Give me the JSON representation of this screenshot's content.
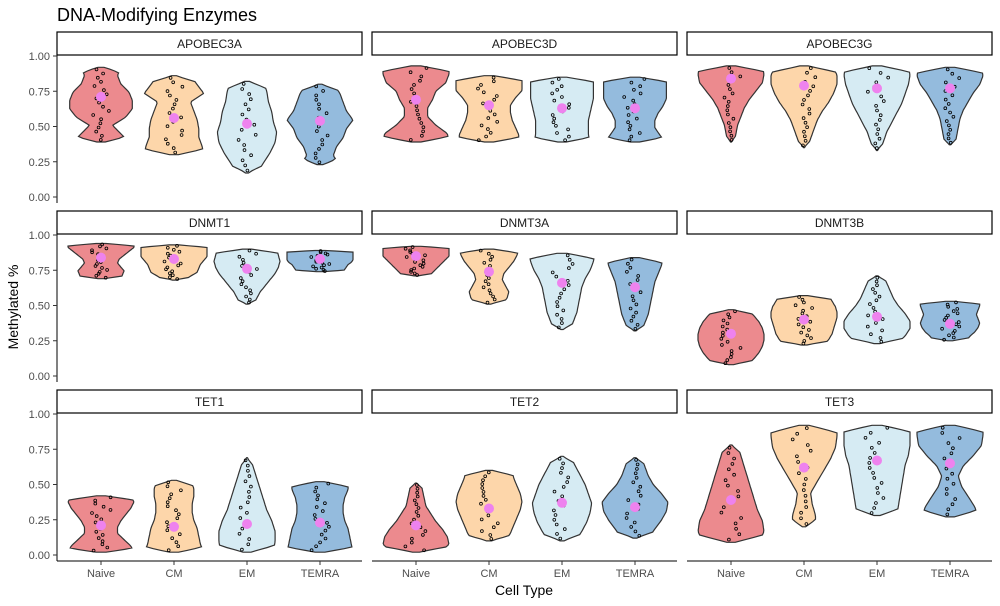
{
  "chart_data": {
    "type": "violin",
    "title": "DNA-Modifying Enzymes",
    "xlabel": "Cell Type",
    "ylabel": "Methylated %",
    "categories": [
      "Naive",
      "CM",
      "EM",
      "TEMRA"
    ],
    "colors": [
      "#EC8A8E",
      "#FDD6AA",
      "#D6EBF3",
      "#94BBDD"
    ],
    "mean_color": "#EE82EE",
    "ylim": [
      0,
      1
    ],
    "y_ticks": [
      "0.00",
      "0.25",
      "0.50",
      "0.75",
      "1.00"
    ],
    "grid": false,
    "legend": "none",
    "panels": [
      {
        "name": "APOBEC3A",
        "series": [
          {
            "min": 0.39,
            "max": 0.92,
            "mean": 0.71,
            "shape": [
              0.85,
              0.6,
              0.35,
              0.75,
              0.95,
              0.95,
              0.85,
              0.6,
              0.5,
              0.6
            ]
          },
          {
            "min": 0.3,
            "max": 0.86,
            "mean": 0.56,
            "shape": [
              0.9,
              0.85,
              0.75,
              0.75,
              0.7,
              0.6,
              0.5,
              0.9,
              0.7,
              0.5
            ]
          },
          {
            "min": 0.17,
            "max": 0.82,
            "mean": 0.52,
            "shape": [
              0.3,
              0.5,
              0.7,
              0.85,
              0.9,
              0.8,
              0.75,
              0.65,
              0.6,
              0.5
            ]
          },
          {
            "min": 0.23,
            "max": 0.8,
            "mean": 0.54,
            "shape": [
              0.6,
              0.4,
              0.5,
              0.7,
              0.8,
              1.0,
              0.8,
              0.7,
              0.6,
              0.4
            ]
          }
        ]
      },
      {
        "name": "APOBEC3D",
        "series": [
          {
            "min": 0.39,
            "max": 0.93,
            "mean": 0.69,
            "shape": [
              1.0,
              0.95,
              0.6,
              0.35,
              0.35,
              0.5,
              0.6,
              0.9,
              1.0,
              1.0
            ]
          },
          {
            "min": 0.39,
            "max": 0.86,
            "mean": 0.65,
            "shape": [
              0.9,
              0.9,
              0.8,
              0.7,
              0.65,
              0.65,
              0.8,
              1.0,
              1.0,
              1.0
            ]
          },
          {
            "min": 0.39,
            "max": 0.85,
            "mean": 0.63,
            "shape": [
              0.85,
              0.8,
              0.8,
              0.8,
              0.85,
              0.9,
              0.95,
              0.95,
              0.95,
              0.95
            ]
          },
          {
            "min": 0.39,
            "max": 0.85,
            "mean": 0.63,
            "shape": [
              0.9,
              0.75,
              0.6,
              0.6,
              0.7,
              0.85,
              0.95,
              0.95,
              0.95,
              0.95
            ]
          }
        ]
      },
      {
        "name": "APOBEC3G",
        "series": [
          {
            "min": 0.39,
            "max": 0.93,
            "mean": 0.84,
            "shape": [
              0.1,
              0.15,
              0.2,
              0.3,
              0.4,
              0.55,
              0.75,
              0.95,
              1.0,
              0.95
            ]
          },
          {
            "min": 0.35,
            "max": 0.93,
            "mean": 0.79,
            "shape": [
              0.1,
              0.2,
              0.3,
              0.4,
              0.55,
              0.75,
              0.9,
              1.0,
              1.0,
              0.85
            ]
          },
          {
            "min": 0.33,
            "max": 0.93,
            "mean": 0.77,
            "shape": [
              0.1,
              0.2,
              0.3,
              0.45,
              0.6,
              0.75,
              0.85,
              0.95,
              1.0,
              0.95
            ]
          },
          {
            "min": 0.37,
            "max": 0.92,
            "mean": 0.77,
            "shape": [
              0.15,
              0.2,
              0.25,
              0.3,
              0.4,
              0.55,
              0.7,
              0.9,
              1.0,
              0.95
            ]
          }
        ]
      },
      {
        "name": "DNMT1",
        "series": [
          {
            "min": 0.69,
            "max": 0.94,
            "mean": 0.84,
            "shape": [
              0.6,
              0.65,
              0.7,
              0.6,
              0.5,
              0.55,
              0.7,
              0.85,
              1.0,
              1.0
            ]
          },
          {
            "min": 0.68,
            "max": 0.93,
            "mean": 0.83,
            "shape": [
              0.3,
              0.5,
              0.7,
              0.75,
              0.8,
              0.9,
              1.0,
              1.0,
              1.0,
              1.0
            ]
          },
          {
            "min": 0.51,
            "max": 0.9,
            "mean": 0.76,
            "shape": [
              0.2,
              0.3,
              0.4,
              0.55,
              0.7,
              0.85,
              0.95,
              1.0,
              0.95,
              0.9
            ]
          },
          {
            "min": 0.74,
            "max": 0.89,
            "mean": 0.83,
            "shape": [
              0.7,
              0.75,
              0.8,
              0.85,
              0.95,
              1.0,
              1.0,
              1.0,
              1.0,
              1.0
            ]
          }
        ]
      },
      {
        "name": "DNMT3A",
        "series": [
          {
            "min": 0.71,
            "max": 0.92,
            "mean": 0.85,
            "shape": [
              0.4,
              0.5,
              0.6,
              0.7,
              0.8,
              0.9,
              1.0,
              1.0,
              1.0,
              1.0
            ]
          },
          {
            "min": 0.51,
            "max": 0.9,
            "mean": 0.74,
            "shape": [
              0.4,
              0.55,
              0.6,
              0.5,
              0.4,
              0.45,
              0.6,
              0.75,
              0.85,
              0.9
            ]
          },
          {
            "min": 0.33,
            "max": 0.87,
            "mean": 0.66,
            "shape": [
              0.25,
              0.35,
              0.45,
              0.5,
              0.55,
              0.6,
              0.7,
              0.85,
              0.95,
              1.0
            ]
          },
          {
            "min": 0.32,
            "max": 0.84,
            "mean": 0.63,
            "shape": [
              0.2,
              0.3,
              0.4,
              0.45,
              0.5,
              0.55,
              0.6,
              0.7,
              0.8,
              0.85
            ]
          }
        ]
      },
      {
        "name": "DNMT3B",
        "series": [
          {
            "min": 0.08,
            "max": 0.47,
            "mean": 0.3,
            "shape": [
              0.5,
              0.7,
              0.85,
              0.95,
              1.0,
              1.0,
              0.95,
              0.85,
              0.7,
              0.5
            ]
          },
          {
            "min": 0.22,
            "max": 0.57,
            "mean": 0.4,
            "shape": [
              0.6,
              0.75,
              0.85,
              0.9,
              0.95,
              1.0,
              1.0,
              0.95,
              0.85,
              0.75
            ]
          },
          {
            "min": 0.23,
            "max": 0.71,
            "mean": 0.42,
            "shape": [
              0.6,
              0.85,
              1.0,
              1.0,
              0.85,
              0.65,
              0.5,
              0.4,
              0.3,
              0.2
            ]
          },
          {
            "min": 0.25,
            "max": 0.53,
            "mean": 0.37,
            "shape": [
              0.5,
              0.6,
              0.75,
              0.85,
              0.9,
              0.85,
              0.8,
              0.85,
              0.9,
              0.9
            ]
          }
        ]
      },
      {
        "name": "TET1",
        "series": [
          {
            "min": 0.02,
            "max": 0.42,
            "mean": 0.21,
            "shape": [
              1.0,
              0.9,
              0.7,
              0.5,
              0.5,
              0.6,
              0.75,
              0.9,
              1.0,
              0.9
            ]
          },
          {
            "min": 0.02,
            "max": 0.53,
            "mean": 0.2,
            "shape": [
              0.9,
              0.8,
              0.75,
              0.7,
              0.6,
              0.55,
              0.55,
              0.6,
              0.6,
              0.5
            ]
          },
          {
            "min": 0.02,
            "max": 0.69,
            "mean": 0.22,
            "shape": [
              0.8,
              0.85,
              0.85,
              0.75,
              0.6,
              0.5,
              0.4,
              0.3,
              0.2,
              0.1
            ]
          },
          {
            "min": 0.02,
            "max": 0.52,
            "mean": 0.23,
            "shape": [
              1.0,
              0.95,
              0.9,
              0.85,
              0.75,
              0.7,
              0.7,
              0.75,
              0.85,
              0.85
            ]
          }
        ]
      },
      {
        "name": "TET2",
        "series": [
          {
            "min": 0.02,
            "max": 0.51,
            "mean": 0.21,
            "shape": [
              0.7,
              1.0,
              0.95,
              0.8,
              0.6,
              0.45,
              0.3,
              0.25,
              0.2,
              0.15
            ]
          },
          {
            "min": 0.1,
            "max": 0.6,
            "mean": 0.33,
            "shape": [
              0.5,
              0.65,
              0.75,
              0.85,
              0.95,
              1.0,
              0.95,
              0.85,
              0.75,
              0.7
            ]
          },
          {
            "min": 0.1,
            "max": 0.7,
            "mean": 0.37,
            "shape": [
              0.4,
              0.6,
              0.75,
              0.85,
              0.9,
              0.8,
              0.7,
              0.55,
              0.4,
              0.25
            ]
          },
          {
            "min": 0.12,
            "max": 0.69,
            "mean": 0.34,
            "shape": [
              0.4,
              0.6,
              0.8,
              0.95,
              1.0,
              0.8,
              0.55,
              0.4,
              0.3,
              0.2
            ]
          }
        ]
      },
      {
        "name": "TET3",
        "series": [
          {
            "min": 0.09,
            "max": 0.78,
            "mean": 0.39,
            "shape": [
              0.85,
              1.0,
              0.95,
              0.8,
              0.7,
              0.6,
              0.5,
              0.4,
              0.3,
              0.2
            ]
          },
          {
            "min": 0.2,
            "max": 0.92,
            "mean": 0.62,
            "shape": [
              0.35,
              0.35,
              0.25,
              0.2,
              0.4,
              0.6,
              0.8,
              0.95,
              1.0,
              1.0
            ]
          },
          {
            "min": 0.28,
            "max": 0.92,
            "mean": 0.67,
            "shape": [
              0.6,
              0.65,
              0.7,
              0.75,
              0.8,
              0.85,
              0.95,
              1.0,
              1.0,
              1.0
            ]
          },
          {
            "min": 0.27,
            "max": 0.92,
            "mean": 0.65,
            "shape": [
              0.85,
              0.75,
              0.55,
              0.35,
              0.25,
              0.4,
              0.7,
              0.95,
              1.0,
              1.0
            ]
          }
        ]
      }
    ]
  }
}
